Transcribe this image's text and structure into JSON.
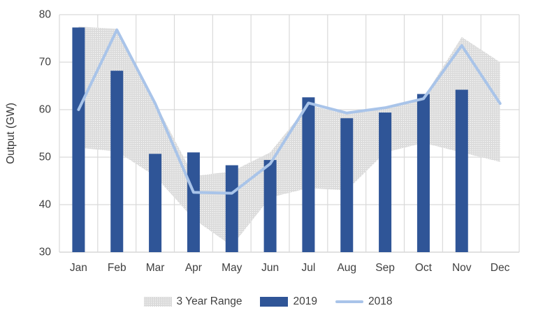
{
  "chart_data": {
    "type": "combo-bar-line-range",
    "title": "",
    "ylabel": "Output (GW)",
    "xlabel": "",
    "categories": [
      "Jan",
      "Feb",
      "Mar",
      "Apr",
      "May",
      "Jun",
      "Jul",
      "Aug",
      "Sep",
      "Oct",
      "Nov",
      "Dec"
    ],
    "y_axis": {
      "min": 30,
      "max": 80,
      "step": 10,
      "ticks": [
        30,
        40,
        50,
        60,
        70,
        80
      ]
    },
    "grid": true,
    "legend_position": "bottom",
    "series": [
      {
        "name": "3 Year Range",
        "type": "range-area",
        "color": "#DBDBDB",
        "upper": [
          77.5,
          77.0,
          61.5,
          46.0,
          47.0,
          51.0,
          61.0,
          59.0,
          60.5,
          62.5,
          75.3,
          70.0
        ],
        "lower": [
          52.0,
          51.2,
          46.0,
          37.0,
          31.3,
          41.5,
          43.5,
          43.0,
          51.0,
          53.0,
          51.0,
          49.0
        ]
      },
      {
        "name": "2019",
        "type": "bar",
        "color": "#2F5597",
        "values": [
          77.3,
          68.2,
          50.7,
          51.0,
          48.3,
          49.4,
          62.6,
          58.2,
          59.4,
          63.3,
          64.2,
          null
        ]
      },
      {
        "name": "2018",
        "type": "line",
        "color": "#A9C4E9",
        "values": [
          60.0,
          76.8,
          61.3,
          42.6,
          42.4,
          48.6,
          61.4,
          59.3,
          60.4,
          62.3,
          73.5,
          61.3
        ]
      }
    ],
    "style": {
      "grid_color": "#D9D9D9",
      "axis_line_color": "#CFCFCF",
      "tick_label_color": "#3F3F3F",
      "axis_title_color": "#363636"
    }
  }
}
